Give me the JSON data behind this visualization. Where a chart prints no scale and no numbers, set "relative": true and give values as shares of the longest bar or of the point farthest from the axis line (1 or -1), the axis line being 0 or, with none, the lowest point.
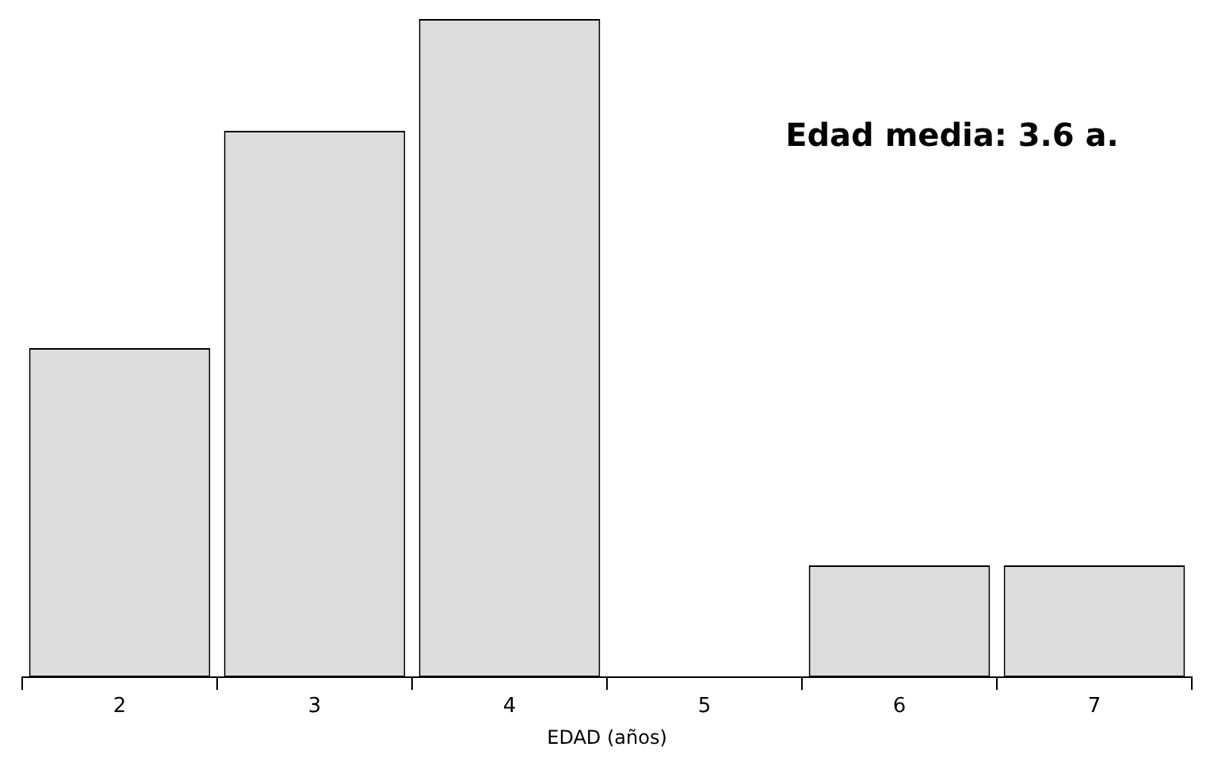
{
  "chart_data": {
    "type": "bar",
    "relative": true,
    "xlabel": "EDAD (años)",
    "categories": [
      "2",
      "3",
      "4",
      "5",
      "6",
      "7"
    ],
    "values": [
      0.5,
      0.83,
      1,
      0,
      0.17,
      0.17
    ],
    "color": "#dcdcdc",
    "annotations": [
      "Edad media: 3.6 a."
    ],
    "grid": false,
    "legend": false
  }
}
